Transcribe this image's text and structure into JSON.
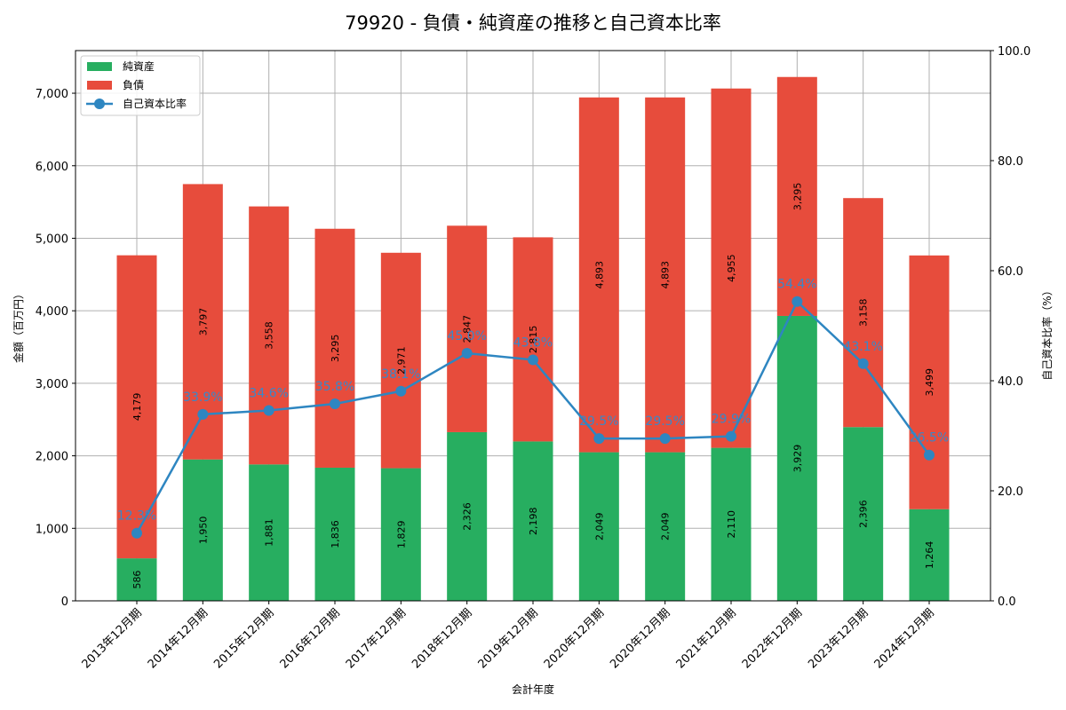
{
  "title": "79920 - 負債・純資産の推移と自己資本比率",
  "xlabel": "会計年度",
  "ylabel_left": "金額（百万円）",
  "ylabel_right": "自己資本比率（%）",
  "legend": [
    {
      "label": "純資産",
      "type": "bar",
      "color": "#27ae60"
    },
    {
      "label": "負債",
      "type": "bar",
      "color": "#e74c3c"
    },
    {
      "label": "自己資本比率",
      "type": "line",
      "color": "#2e86c1"
    }
  ],
  "left_ticks": [
    "0",
    "1,000",
    "2,000",
    "3,000",
    "4,000",
    "5,000",
    "6,000",
    "7,000"
  ],
  "right_ticks": [
    "0.0",
    "20.0",
    "40.0",
    "60.0",
    "80.0",
    "100.0"
  ],
  "chart_data": {
    "type": "bar",
    "stacked": true,
    "title": "79920 - 負債・純資産の推移と自己資本比率",
    "xlabel": "会計年度",
    "ylabel": "金額（百万円）",
    "y2label": "自己資本比率（%）",
    "ylim": [
      0,
      7588
    ],
    "y2lim": [
      0,
      100
    ],
    "grid": true,
    "legend_position": "upper left",
    "categories": [
      "2013年12月期",
      "2014年12月期",
      "2015年12月期",
      "2016年12月期",
      "2017年12月期",
      "2018年12月期",
      "2019年12月期",
      "2020年12月期",
      "2020年12月期",
      "2021年12月期",
      "2022年12月期",
      "2023年12月期",
      "2024年12月期"
    ],
    "series": [
      {
        "name": "純資産",
        "type": "bar",
        "color": "#27ae60",
        "values": [
          586,
          1950,
          1881,
          1836,
          1829,
          2326,
          2198,
          2049,
          2049,
          2110,
          3929,
          2396,
          1264
        ],
        "labels": [
          "586",
          "1,950",
          "1,881",
          "1,836",
          "1,829",
          "2,326",
          "2,198",
          "2,049",
          "2,049",
          "2,110",
          "3,929",
          "2,396",
          "1,264"
        ]
      },
      {
        "name": "負債",
        "type": "bar",
        "color": "#e74c3c",
        "values": [
          4179,
          3797,
          3558,
          3295,
          2971,
          2847,
          2815,
          4893,
          4893,
          4955,
          3295,
          3158,
          3499
        ],
        "labels": [
          "4,179",
          "3,797",
          "3,558",
          "3,295",
          "2,971",
          "2,847",
          "2,815",
          "4,893",
          "4,893",
          "4,955",
          "3,295",
          "3,158",
          "3,499"
        ]
      },
      {
        "name": "自己資本比率",
        "type": "line",
        "axis": "right",
        "color": "#2e86c1",
        "values": [
          12.3,
          33.9,
          34.6,
          35.8,
          38.1,
          45.0,
          43.8,
          29.5,
          29.5,
          29.9,
          54.4,
          43.1,
          26.5
        ],
        "labels": [
          "12.3%",
          "33.9%",
          "34.6%",
          "35.8%",
          "38.1%",
          "45.0%",
          "43.8%",
          "29.5%",
          "29.5%",
          "29.9%",
          "54.4%",
          "43.1%",
          "26.5%"
        ]
      }
    ]
  }
}
